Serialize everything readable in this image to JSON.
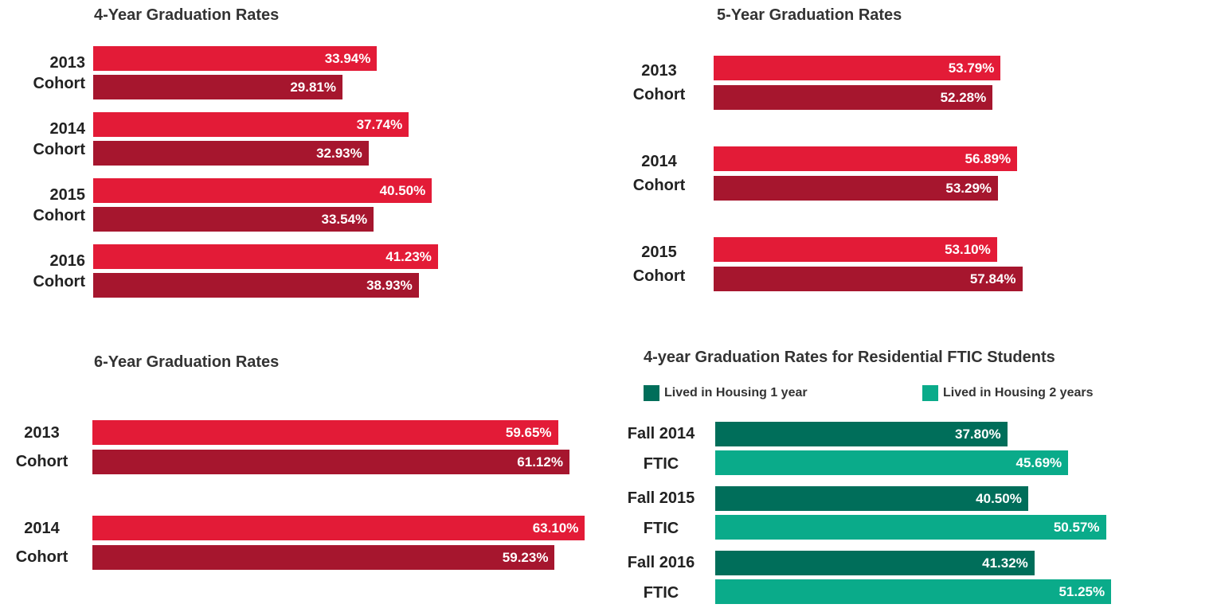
{
  "chart_data": [
    {
      "type": "bar",
      "title": "4-Year Graduation Rates",
      "categories": [
        "2013 Cohort",
        "2014 Cohort",
        "2015 Cohort",
        "2016 Cohort"
      ],
      "series": [
        {
          "color": "#e31b37",
          "values": [
            33.94,
            37.74,
            40.5,
            41.23
          ],
          "value_labels": [
            "33.94%",
            "37.74%",
            "40.50%",
            "41.23%"
          ]
        },
        {
          "color": "#a6162e",
          "values": [
            29.81,
            32.93,
            33.54,
            38.93
          ],
          "value_labels": [
            "29.81%",
            "32.93%",
            "33.54%",
            "38.93%"
          ]
        }
      ]
    },
    {
      "type": "bar",
      "title": "5-Year Graduation Rates",
      "categories": [
        "2013 Cohort",
        "2014 Cohort",
        "2015 Cohort"
      ],
      "series": [
        {
          "color": "#e31b37",
          "values": [
            53.79,
            56.89,
            53.1
          ],
          "value_labels": [
            "53.79%",
            "56.89%",
            "53.10%"
          ]
        },
        {
          "color": "#a6162e",
          "values": [
            52.28,
            53.29,
            57.84
          ],
          "value_labels": [
            "52.28%",
            "53.29%",
            "57.84%"
          ]
        }
      ]
    },
    {
      "type": "bar",
      "title": "6-Year Graduation Rates",
      "categories": [
        "2013 Cohort",
        "2014 Cohort"
      ],
      "series": [
        {
          "color": "#e31b37",
          "values": [
            59.65,
            63.1
          ],
          "value_labels": [
            "59.65%",
            "63.10%"
          ]
        },
        {
          "color": "#a6162e",
          "values": [
            61.12,
            59.23
          ],
          "value_labels": [
            "61.12%",
            "59.23%"
          ]
        }
      ]
    },
    {
      "type": "bar",
      "title": "4-year Graduation Rates for Residential FTIC Students",
      "categories": [
        "Fall 2014 FTIC",
        "Fall 2015 FTIC",
        "Fall 2016 FTIC"
      ],
      "series": [
        {
          "name": "Lived in Housing 1 year",
          "color": "#006e5a",
          "values": [
            37.8,
            40.5,
            41.32
          ],
          "value_labels": [
            "37.80%",
            "40.50%",
            "41.32%"
          ]
        },
        {
          "name": "Lived in Housing 2 years",
          "color": "#0aab8a",
          "values": [
            45.69,
            50.57,
            51.25
          ],
          "value_labels": [
            "45.69%",
            "50.57%",
            "51.25%"
          ]
        }
      ],
      "legend": "top"
    }
  ]
}
